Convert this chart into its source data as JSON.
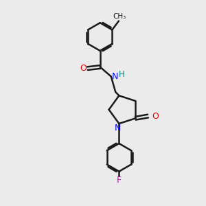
{
  "bg_color": "#ebebeb",
  "bond_color": "#1a1a1a",
  "N_color": "#0000ee",
  "O_color": "#ee0000",
  "F_color": "#cc00cc",
  "H_color": "#008080",
  "line_width": 1.8,
  "xlim": [
    0,
    10
  ],
  "ylim": [
    0,
    14
  ]
}
